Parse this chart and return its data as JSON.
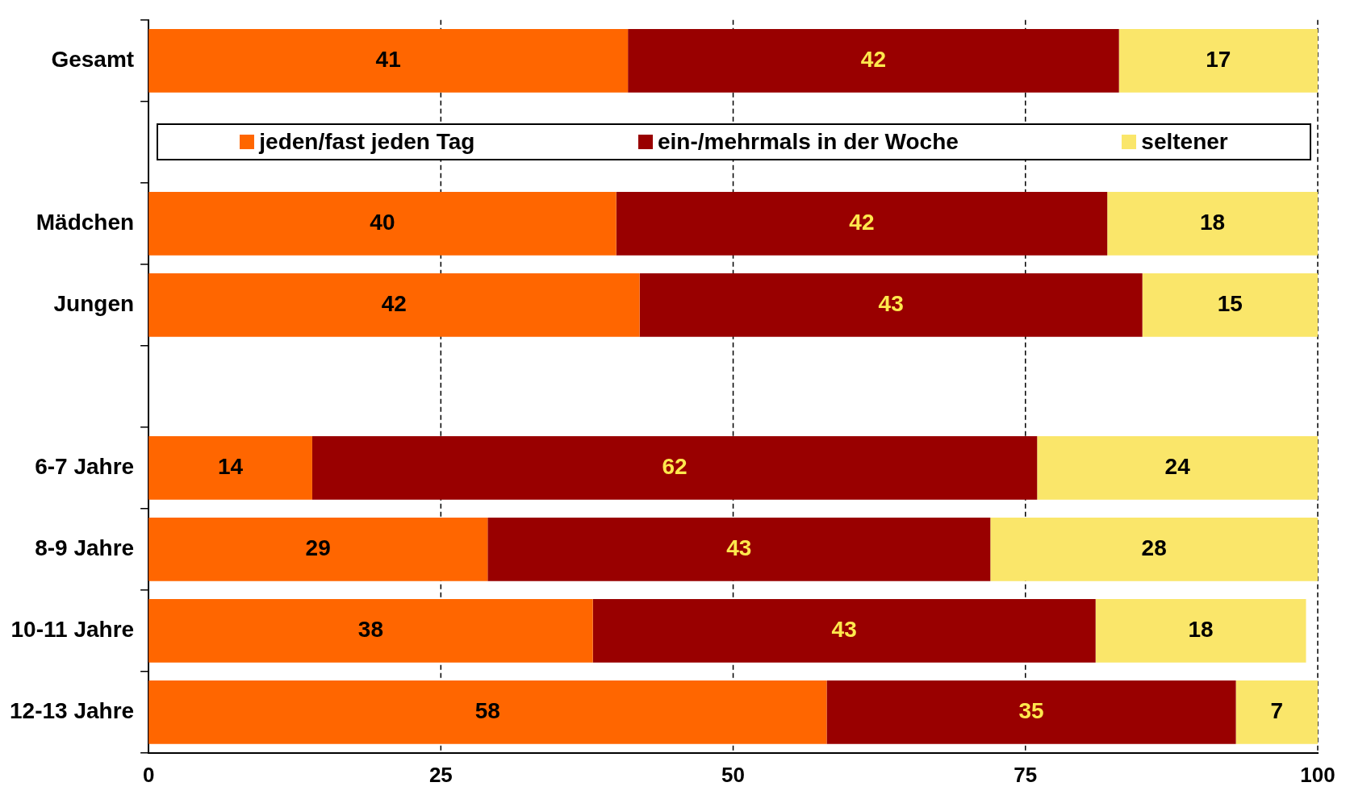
{
  "chart_data": {
    "type": "bar",
    "orientation": "horizontal",
    "stacked": true,
    "categories": [
      "Gesamt",
      null,
      "Mädchen",
      "Jungen",
      null,
      "6-7 Jahre",
      "8-9 Jahre",
      "10-11 Jahre",
      "12-13 Jahre"
    ],
    "series": [
      {
        "name": "jeden/fast jeden Tag",
        "color": "#ff6600",
        "values": [
          41,
          null,
          40,
          42,
          null,
          14,
          29,
          38,
          58
        ]
      },
      {
        "name": "ein-/mehrmals in der Woche",
        "color": "#990000",
        "values": [
          42,
          null,
          42,
          43,
          null,
          62,
          43,
          43,
          35
        ]
      },
      {
        "name": "seltener",
        "color": "#fae66a",
        "values": [
          17,
          null,
          18,
          15,
          null,
          24,
          28,
          18,
          7
        ]
      }
    ],
    "xlim": [
      0,
      100
    ],
    "xticks": [
      0,
      25,
      50,
      75,
      100
    ],
    "grid": "x",
    "legend": "top",
    "data_labels": true
  }
}
